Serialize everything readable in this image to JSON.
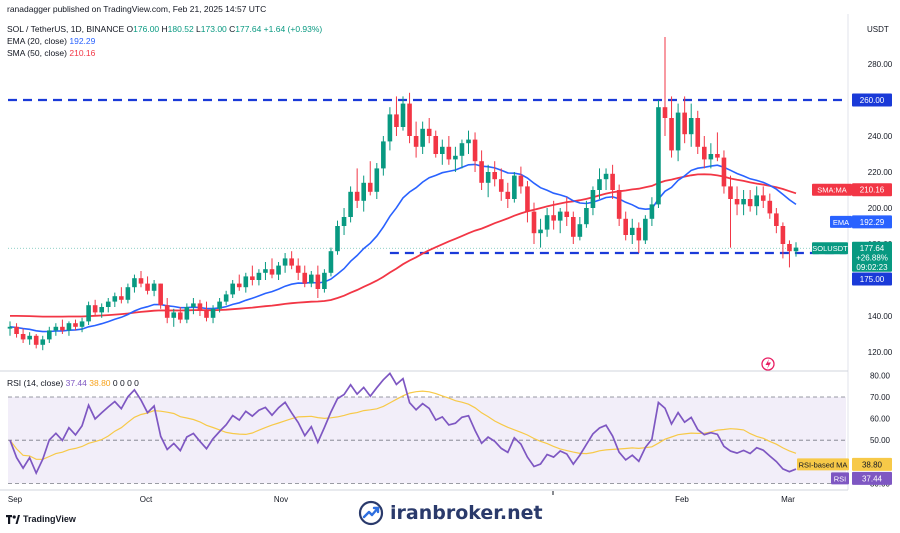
{
  "header": {
    "published": "ranadagger published on TradingView.com, Feb 21, 2025 14:57 UTC",
    "symbol_line": "SOL / TetherUS, 1D, BINANCE",
    "ohlc": {
      "o_label": "O",
      "o": "176.00",
      "h_label": "H",
      "h": "180.52",
      "l_label": "L",
      "l": "173.00",
      "c_label": "C",
      "c": "177.64",
      "chg": "+1.64 (+0.93%)"
    },
    "ema": {
      "label": "EMA (20, close)",
      "value": "192.29"
    },
    "sma": {
      "label": "SMA (50, close)",
      "value": "210.16"
    },
    "rsi": {
      "label": "RSI (14, close)",
      "value": "37.44",
      "ma_value": "38.80",
      "rest": "0 0 0 0"
    }
  },
  "price_axis_label": "USDT",
  "tags": {
    "level_260": "260.00",
    "sma_label": "SMA:MA",
    "sma_value": "210.16",
    "ema_label": "EMA",
    "ema_value": "192.29",
    "sym_label": "SOLUSDT",
    "sym_price": "177.64",
    "sym_change": "+26.88%",
    "sym_time": "09:02:23",
    "level_175": "175.00",
    "rsi_ma_label": "RSI-based MA",
    "rsi_ma_value": "38.80",
    "rsi_label": "RSI",
    "rsi_value": "37.44"
  },
  "branding": {
    "tv_logo": "TradingView",
    "watermark": "iranbroker.net"
  },
  "colors": {
    "up": "#089981",
    "down": "#f23645",
    "ema": "#2962ff",
    "sma": "#f23645",
    "rsi": "#7e57c2",
    "rsi_ma": "#f7c948",
    "level": "#1a3ad8"
  },
  "chart_data": [
    {
      "type": "candlestick",
      "title": "SOL / TetherUS, 1D, BINANCE",
      "ylabel": "USDT",
      "ylim": [
        110,
        300
      ],
      "yticks": [
        120,
        140,
        160,
        180,
        200,
        220,
        240,
        260,
        280
      ],
      "x_labels": [
        "Sep",
        "Oct",
        "Nov",
        "Feb",
        "Mar"
      ],
      "horizontal_levels": [
        260,
        175
      ],
      "ohlc": [
        [
          133,
          137,
          129,
          134
        ],
        [
          134,
          136,
          128,
          130
        ],
        [
          130,
          133,
          125,
          127
        ],
        [
          127,
          131,
          124,
          129
        ],
        [
          129,
          130,
          122,
          124
        ],
        [
          124,
          129,
          121,
          127
        ],
        [
          127,
          134,
          125,
          132
        ],
        [
          132,
          136,
          129,
          134
        ],
        [
          134,
          138,
          130,
          132
        ],
        [
          132,
          137,
          129,
          136
        ],
        [
          136,
          138,
          132,
          134
        ],
        [
          134,
          139,
          131,
          137
        ],
        [
          137,
          148,
          135,
          146
        ],
        [
          146,
          149,
          140,
          142
        ],
        [
          142,
          147,
          139,
          145
        ],
        [
          145,
          150,
          142,
          148
        ],
        [
          148,
          153,
          145,
          151
        ],
        [
          151,
          156,
          147,
          149
        ],
        [
          149,
          158,
          147,
          156
        ],
        [
          156,
          163,
          153,
          161
        ],
        [
          161,
          165,
          156,
          158
        ],
        [
          158,
          162,
          152,
          154
        ],
        [
          154,
          160,
          151,
          158
        ],
        [
          158,
          158,
          144,
          146
        ],
        [
          146,
          150,
          136,
          139
        ],
        [
          139,
          144,
          134,
          142
        ],
        [
          142,
          145,
          136,
          138
        ],
        [
          138,
          147,
          136,
          145
        ],
        [
          145,
          150,
          141,
          147
        ],
        [
          147,
          149,
          140,
          143
        ],
        [
          143,
          148,
          137,
          139
        ],
        [
          139,
          146,
          136,
          144
        ],
        [
          144,
          150,
          142,
          148
        ],
        [
          148,
          154,
          146,
          152
        ],
        [
          152,
          160,
          150,
          158
        ],
        [
          158,
          163,
          154,
          156
        ],
        [
          156,
          164,
          153,
          162
        ],
        [
          162,
          168,
          157,
          160
        ],
        [
          160,
          166,
          157,
          164
        ],
        [
          164,
          170,
          160,
          166
        ],
        [
          166,
          172,
          161,
          163
        ],
        [
          163,
          170,
          160,
          168
        ],
        [
          168,
          175,
          164,
          172
        ],
        [
          172,
          176,
          166,
          168
        ],
        [
          168,
          172,
          160,
          164
        ],
        [
          164,
          168,
          156,
          158
        ],
        [
          158,
          165,
          156,
          163
        ],
        [
          163,
          168,
          150,
          155
        ],
        [
          155,
          166,
          153,
          164
        ],
        [
          164,
          178,
          162,
          176
        ],
        [
          176,
          193,
          174,
          190
        ],
        [
          190,
          200,
          185,
          195
        ],
        [
          195,
          212,
          192,
          209
        ],
        [
          209,
          222,
          200,
          204
        ],
        [
          204,
          218,
          198,
          214
        ],
        [
          214,
          226,
          207,
          209
        ],
        [
          209,
          225,
          205,
          222
        ],
        [
          222,
          240,
          218,
          237
        ],
        [
          237,
          256,
          232,
          252
        ],
        [
          252,
          262,
          240,
          245
        ],
        [
          245,
          262,
          243,
          258
        ],
        [
          258,
          264,
          236,
          240
        ],
        [
          240,
          248,
          228,
          234
        ],
        [
          234,
          248,
          230,
          244
        ],
        [
          244,
          250,
          236,
          240
        ],
        [
          240,
          243,
          228,
          230
        ],
        [
          230,
          238,
          224,
          234
        ],
        [
          234,
          240,
          224,
          227
        ],
        [
          227,
          234,
          220,
          229
        ],
        [
          229,
          238,
          222,
          236
        ],
        [
          236,
          243,
          230,
          238
        ],
        [
          238,
          242,
          220,
          226
        ],
        [
          226,
          232,
          210,
          214
        ],
        [
          214,
          224,
          206,
          220
        ],
        [
          220,
          226,
          212,
          216
        ],
        [
          216,
          222,
          204,
          209
        ],
        [
          209,
          214,
          200,
          205
        ],
        [
          205,
          220,
          203,
          218
        ],
        [
          218,
          223,
          208,
          212
        ],
        [
          212,
          215,
          192,
          198
        ],
        [
          198,
          203,
          180,
          186
        ],
        [
          186,
          194,
          178,
          188
        ],
        [
          188,
          200,
          184,
          196
        ],
        [
          196,
          204,
          188,
          193
        ],
        [
          193,
          200,
          186,
          198
        ],
        [
          198,
          206,
          190,
          195
        ],
        [
          195,
          198,
          180,
          184
        ],
        [
          184,
          195,
          182,
          191
        ],
        [
          191,
          204,
          189,
          200
        ],
        [
          200,
          212,
          196,
          210
        ],
        [
          210,
          222,
          205,
          216
        ],
        [
          216,
          222,
          210,
          219
        ],
        [
          219,
          224,
          205,
          210
        ],
        [
          210,
          213,
          190,
          194
        ],
        [
          194,
          198,
          182,
          185
        ],
        [
          185,
          194,
          180,
          189
        ],
        [
          189,
          192,
          175,
          182
        ],
        [
          182,
          196,
          180,
          194
        ],
        [
          194,
          206,
          190,
          202
        ],
        [
          202,
          260,
          200,
          256
        ],
        [
          256,
          295,
          240,
          250
        ],
        [
          250,
          262,
          228,
          232
        ],
        [
          232,
          258,
          226,
          253
        ],
        [
          253,
          262,
          236,
          241
        ],
        [
          241,
          258,
          234,
          250
        ],
        [
          250,
          254,
          230,
          234
        ],
        [
          234,
          240,
          222,
          227
        ],
        [
          227,
          236,
          222,
          230
        ],
        [
          230,
          242,
          226,
          228
        ],
        [
          228,
          232,
          208,
          212
        ],
        [
          212,
          218,
          178,
          205
        ],
        [
          205,
          212,
          196,
          202
        ],
        [
          202,
          210,
          196,
          205
        ],
        [
          205,
          210,
          198,
          201
        ],
        [
          201,
          212,
          196,
          207
        ],
        [
          207,
          212,
          200,
          204
        ],
        [
          204,
          208,
          194,
          197
        ],
        [
          197,
          200,
          186,
          190
        ],
        [
          190,
          192,
          172,
          180
        ],
        [
          180,
          182,
          167,
          176
        ],
        [
          176,
          181,
          173,
          178
        ]
      ],
      "series": [
        {
          "name": "EMA (20, close)",
          "color": "#2962ff",
          "values": []
        },
        {
          "name": "SMA (50, close)",
          "color": "#f23645",
          "values": []
        }
      ]
    },
    {
      "type": "line",
      "title": "RSI (14, close)",
      "ylim": [
        26,
        80
      ],
      "yticks": [
        30,
        40,
        50,
        60,
        70,
        80
      ],
      "band": [
        30,
        70
      ],
      "series": [
        {
          "name": "RSI",
          "color": "#7e57c2",
          "values": []
        },
        {
          "name": "RSI-based MA",
          "color": "#f7c948",
          "values": []
        }
      ]
    }
  ]
}
